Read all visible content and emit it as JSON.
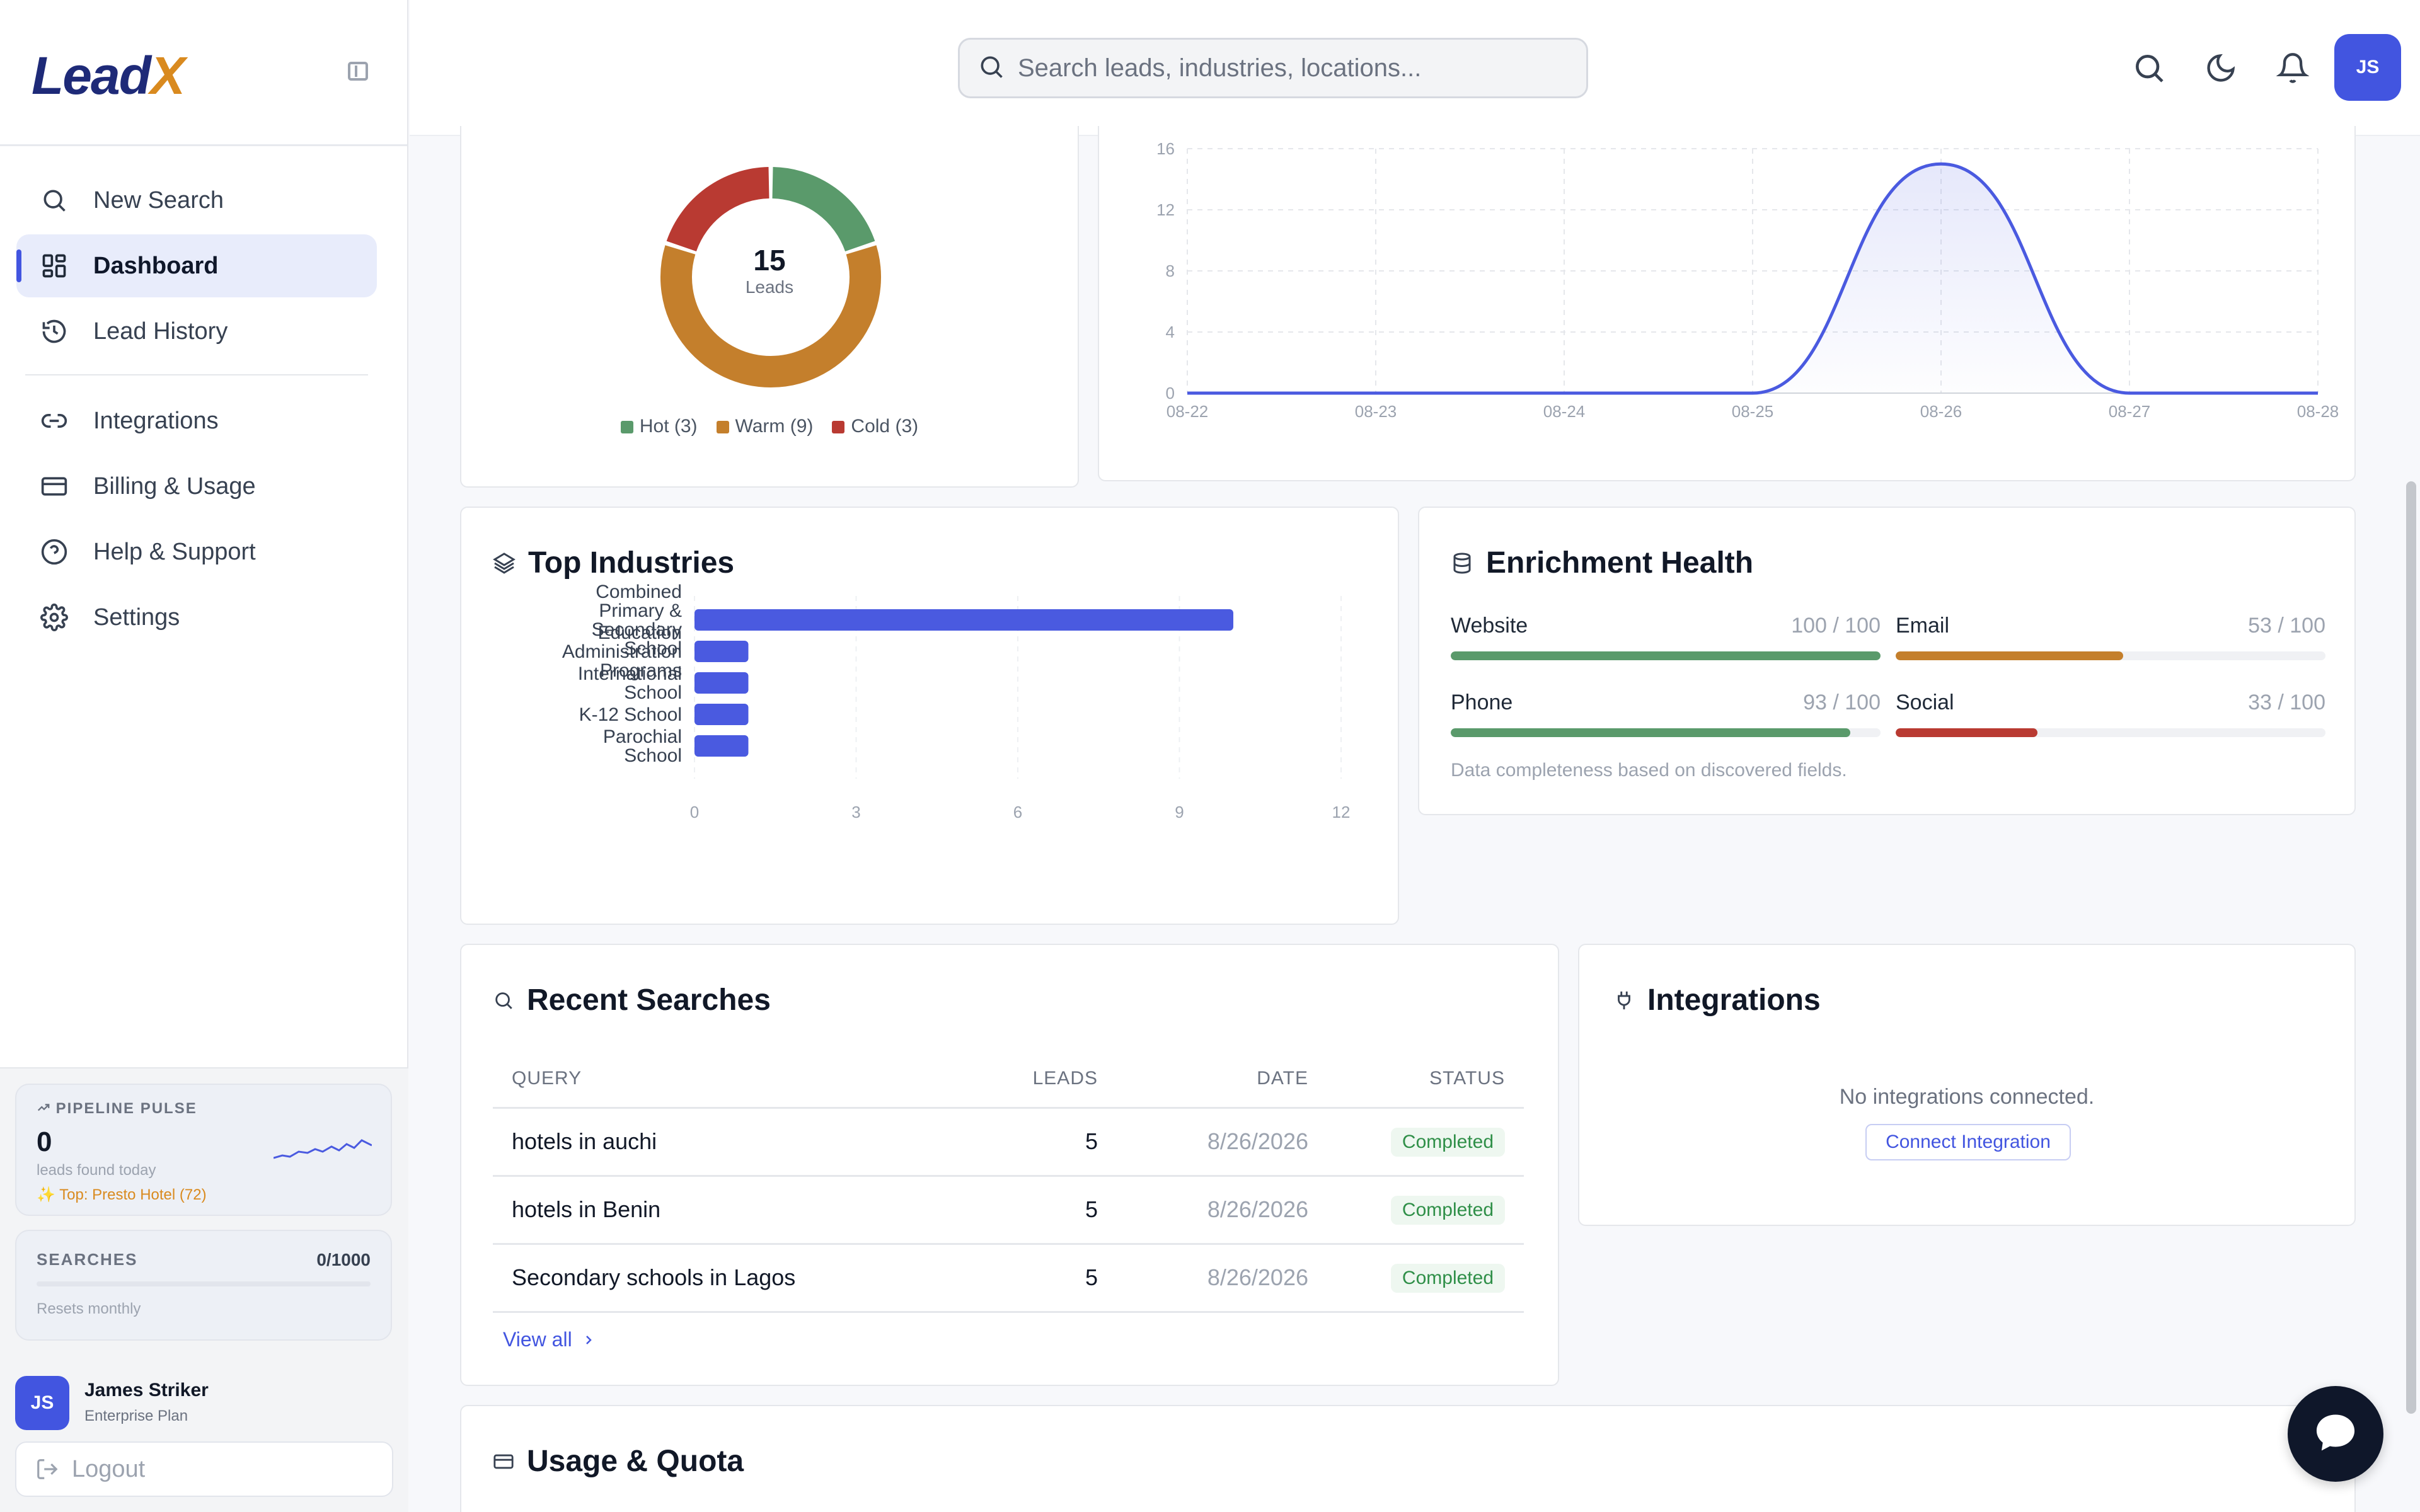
{
  "app": {
    "logo_main": "Lead",
    "logo_accent": "X"
  },
  "sidebar": {
    "items": [
      {
        "label": "New Search",
        "icon": "search-icon"
      },
      {
        "label": "Dashboard",
        "icon": "dashboard-grid-icon",
        "active": true
      },
      {
        "label": "Lead History",
        "icon": "history-icon"
      },
      {
        "label": "Integrations",
        "icon": "link-icon"
      },
      {
        "label": "Billing & Usage",
        "icon": "credit-card-icon"
      },
      {
        "label": "Help & Support",
        "icon": "help-circle-icon"
      },
      {
        "label": "Settings",
        "icon": "gear-icon"
      }
    ],
    "pulse": {
      "label": "PIPELINE PULSE",
      "value": "0",
      "sub": "leads found today",
      "top": "Top: Presto Hotel (72)"
    },
    "searches": {
      "label": "SEARCHES",
      "value": "0/1000",
      "note": "Resets monthly",
      "used_fraction": 0
    },
    "user": {
      "initials": "JS",
      "name": "James Striker",
      "plan": "Enterprise Plan"
    },
    "logout_label": "Logout"
  },
  "header": {
    "search_placeholder": "Search leads, industries, locations...",
    "avatar_initials": "JS",
    "icons": [
      "search-icon",
      "moon-icon",
      "bell-icon"
    ]
  },
  "lead_temperature": {
    "total": "15",
    "total_label": "Leads",
    "legend": [
      {
        "label": "Hot (3)",
        "color": "#5a9a6b"
      },
      {
        "label": "Warm (9)",
        "color": "#c47f2c"
      },
      {
        "label": "Cold (3)",
        "color": "#b93a32"
      }
    ]
  },
  "top_industries": {
    "title": "Top Industries"
  },
  "enrichment": {
    "title": "Enrichment Health",
    "metrics": [
      {
        "label": "Website",
        "value": "100 / 100",
        "pct": 100,
        "color": "#5a9a6b"
      },
      {
        "label": "Email",
        "value": "53 / 100",
        "pct": 53,
        "color": "#c47f2c"
      },
      {
        "label": "Phone",
        "value": "93 / 100",
        "pct": 93,
        "color": "#5a9a6b"
      },
      {
        "label": "Social",
        "value": "33 / 100",
        "pct": 33,
        "color": "#b93a32"
      }
    ],
    "note": "Data completeness based on discovered fields."
  },
  "recent_searches": {
    "title": "Recent Searches",
    "columns": [
      "QUERY",
      "LEADS",
      "DATE",
      "STATUS"
    ],
    "rows": [
      {
        "query": "hotels in auchi",
        "leads": "5",
        "date": "8/26/2026",
        "status": "Completed"
      },
      {
        "query": "hotels in Benin",
        "leads": "5",
        "date": "8/26/2026",
        "status": "Completed"
      },
      {
        "query": "Secondary schools in Lagos",
        "leads": "5",
        "date": "8/26/2026",
        "status": "Completed"
      }
    ],
    "view_all": "View all"
  },
  "integrations": {
    "title": "Integrations",
    "empty": "No integrations connected.",
    "button": "Connect Integration"
  },
  "usage": {
    "title": "Usage & Quota"
  },
  "chart_data": [
    {
      "type": "pie",
      "categories": [
        "Hot",
        "Warm",
        "Cold"
      ],
      "values": [
        3,
        9,
        3
      ],
      "colors": [
        "#5a9a6b",
        "#c47f2c",
        "#b93a32"
      ]
    },
    {
      "type": "area",
      "x": [
        "08-22",
        "08-23",
        "08-24",
        "08-25",
        "08-26",
        "08-27",
        "08-28"
      ],
      "y": [
        0,
        0,
        0,
        0,
        15,
        0,
        0
      ],
      "ylim": [
        0,
        16
      ],
      "yticks": [
        0,
        4,
        8,
        12,
        16
      ],
      "grid": true,
      "color": "#4a5ae0"
    },
    {
      "type": "bar",
      "orientation": "horizontal",
      "categories": [
        "Combined Primary & Secondary School",
        "Education Administration Programs",
        "International School",
        "K-12 School",
        "Parochial School"
      ],
      "category_lines": [
        [
          "Combined",
          "Primary &",
          "Secondary",
          "School"
        ],
        [
          "Education",
          "Administration",
          "Programs"
        ],
        [
          "International",
          "School"
        ],
        [
          "K-12 School"
        ],
        [
          "Parochial",
          "School"
        ]
      ],
      "values": [
        10,
        1,
        1,
        1,
        1
      ],
      "xlim": [
        0,
        12
      ],
      "xticks": [
        0,
        3,
        6,
        9,
        12
      ],
      "grid": true,
      "color": "#4a5ae0"
    }
  ]
}
